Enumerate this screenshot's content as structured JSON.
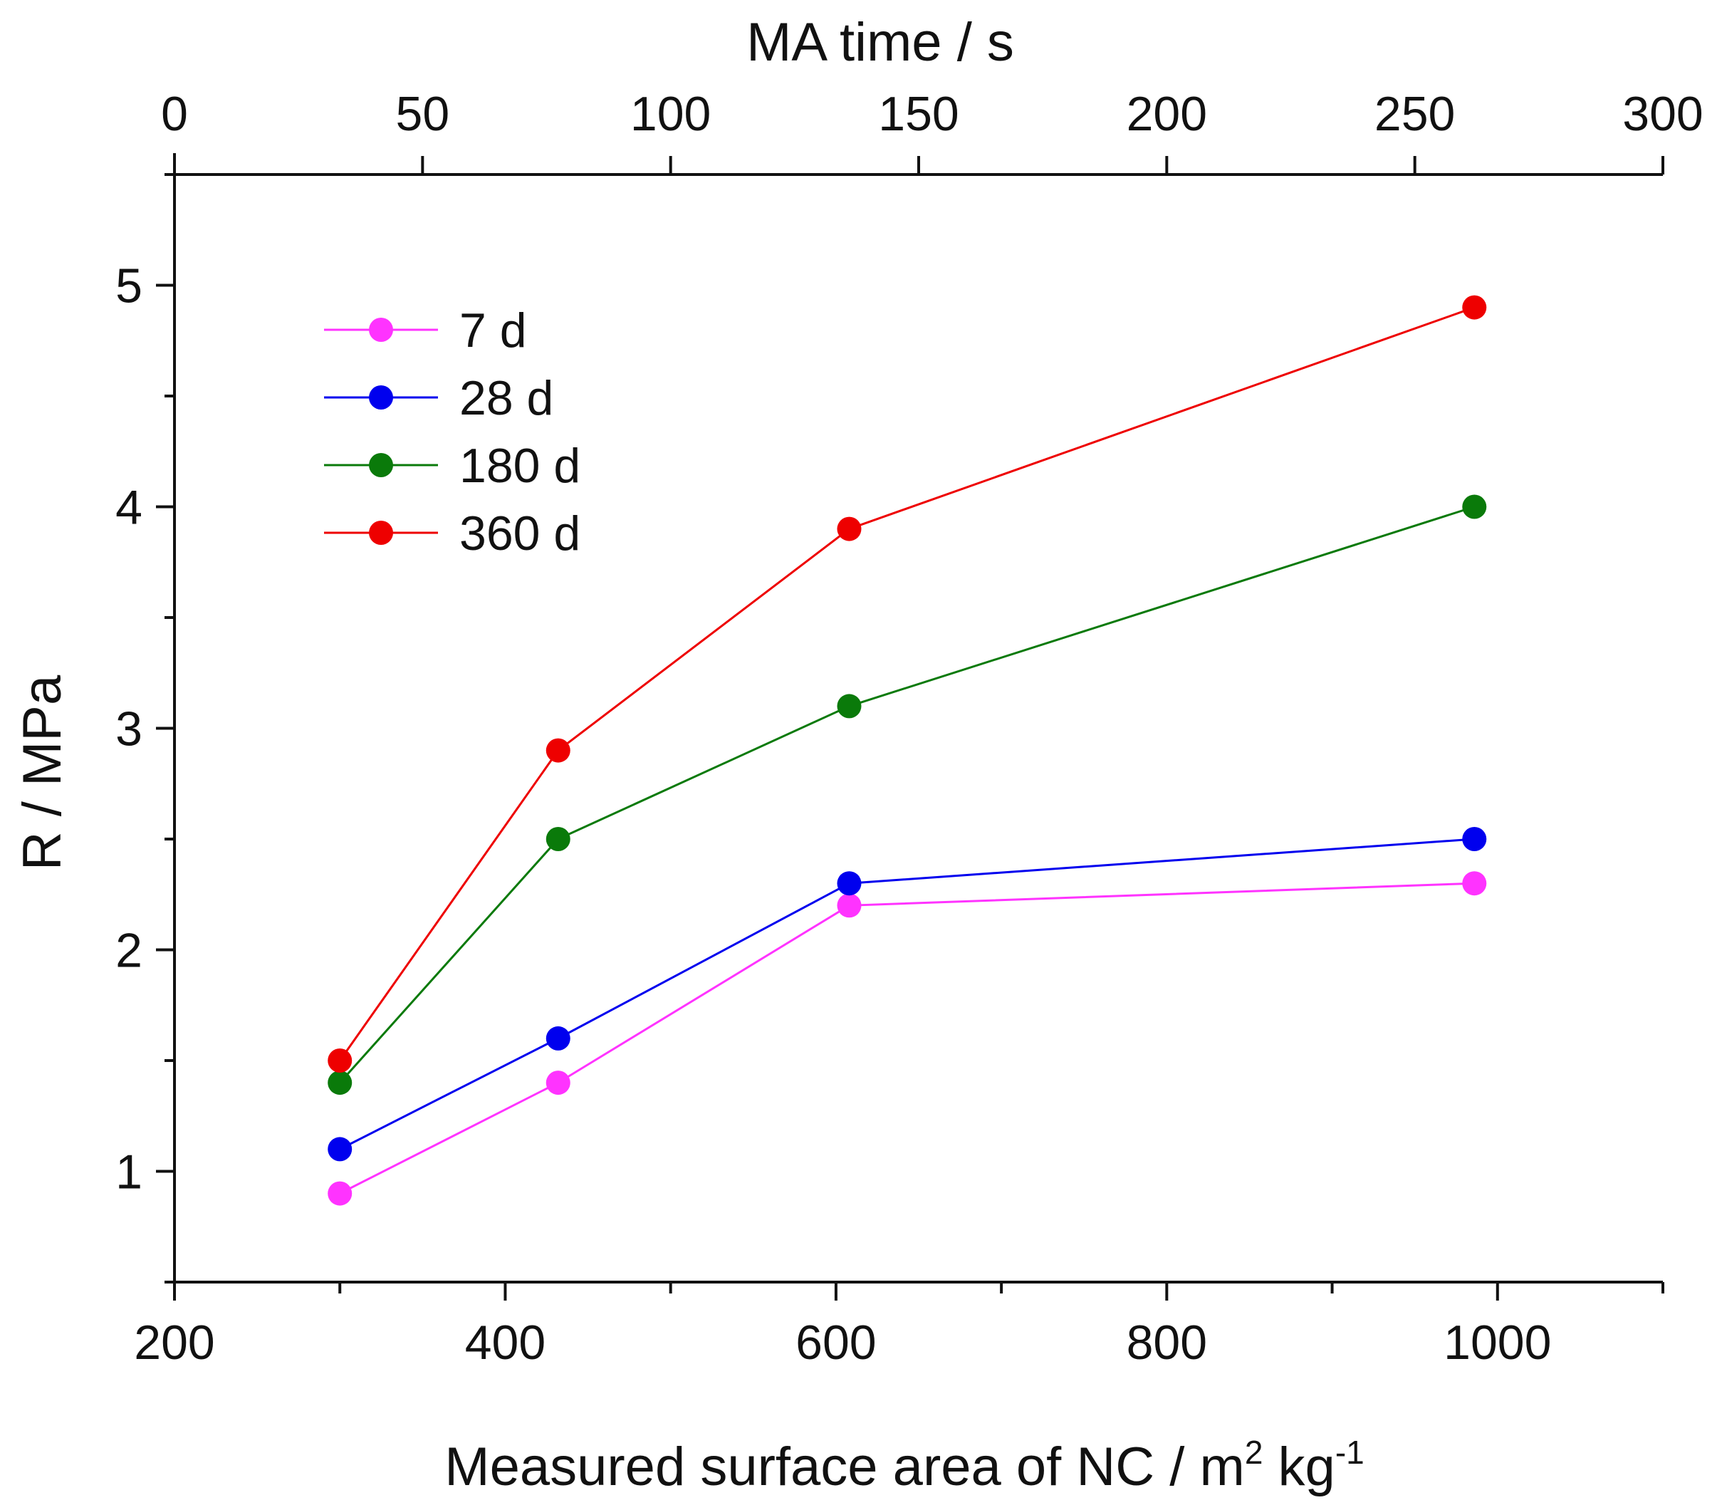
{
  "chart_data": {
    "type": "line",
    "xlabel": "Measured surface area of NC / m",
    "xlabel_sup1": "2",
    "xlabel_mid": " kg",
    "xlabel_sup2": "-1",
    "x2label": "MA time / s",
    "ylabel": "R / MPa",
    "xlim": [
      200,
      1100
    ],
    "x2lim": [
      0,
      300
    ],
    "ylim": [
      0.5,
      5.5
    ],
    "xticks": [
      200,
      400,
      600,
      800,
      1000
    ],
    "x2ticks": [
      0,
      50,
      100,
      150,
      200,
      250,
      300
    ],
    "yticks": [
      1,
      2,
      3,
      4,
      5
    ],
    "legend_position": "top-left",
    "grid": false,
    "x": [
      300,
      432,
      608,
      986
    ],
    "series": [
      {
        "name": "7 d",
        "color": "#ff33ff",
        "values": [
          0.9,
          1.4,
          2.2,
          2.3
        ]
      },
      {
        "name": "28 d",
        "color": "#0000ee",
        "values": [
          1.1,
          1.6,
          2.3,
          2.5
        ]
      },
      {
        "name": "180 d",
        "color": "#0a7a0a",
        "values": [
          1.4,
          2.5,
          3.1,
          4.0
        ]
      },
      {
        "name": "360 d",
        "color": "#ee0000",
        "values": [
          1.5,
          2.9,
          3.9,
          4.9
        ]
      }
    ]
  }
}
